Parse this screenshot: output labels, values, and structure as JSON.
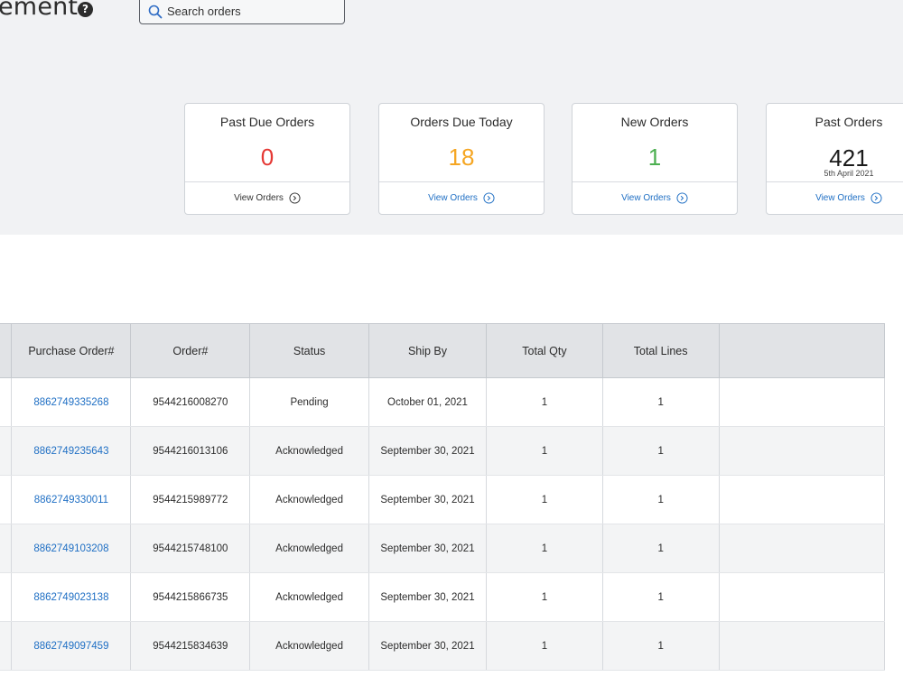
{
  "header": {
    "title_fragment": "ement",
    "help_icon": "question-circle-icon",
    "search": {
      "placeholder": "Search orders",
      "value": ""
    }
  },
  "summary_cards": [
    {
      "title": "Past Due Orders",
      "value": "0",
      "value_color": "#e53935",
      "subtitle": "",
      "link_label": "View Orders",
      "link_color": "#333333"
    },
    {
      "title": "Orders Due Today",
      "value": "18",
      "value_color": "#f5a623",
      "subtitle": "",
      "link_label": "View Orders",
      "link_color": "#1f6fc4"
    },
    {
      "title": "New Orders",
      "value": "1",
      "value_color": "#4caf50",
      "subtitle": "",
      "link_label": "View Orders",
      "link_color": "#1f6fc4"
    },
    {
      "title": "Past Orders",
      "value": "421",
      "value_color": "#1a1a1a",
      "subtitle": "5th April 2021",
      "link_label": "View Orders",
      "link_color": "#1f6fc4"
    }
  ],
  "table": {
    "headers": [
      "",
      "Purchase Order#",
      "Order#",
      "Status",
      "Ship By",
      "Total Qty",
      "Total Lines",
      ""
    ],
    "rows": [
      [
        "8862749335268",
        "9544216008270",
        "Pending",
        "October 01, 2021",
        "1",
        "1"
      ],
      [
        "8862749235643",
        "9544216013106",
        "Acknowledged",
        "September 30, 2021",
        "1",
        "1"
      ],
      [
        "8862749330011",
        "9544215989772",
        "Acknowledged",
        "September 30, 2021",
        "1",
        "1"
      ],
      [
        "8862749103208",
        "9544215748100",
        "Acknowledged",
        "September 30, 2021",
        "1",
        "1"
      ],
      [
        "8862749023138",
        "9544215866735",
        "Acknowledged",
        "September 30, 2021",
        "1",
        "1"
      ],
      [
        "8862749097459",
        "9544215834639",
        "Acknowledged",
        "September 30, 2021",
        "1",
        "1"
      ]
    ]
  },
  "colors": {
    "link": "#1f6fc4",
    "header_bg": "#e1e3e6",
    "top_bg": "#f1f2f4"
  }
}
